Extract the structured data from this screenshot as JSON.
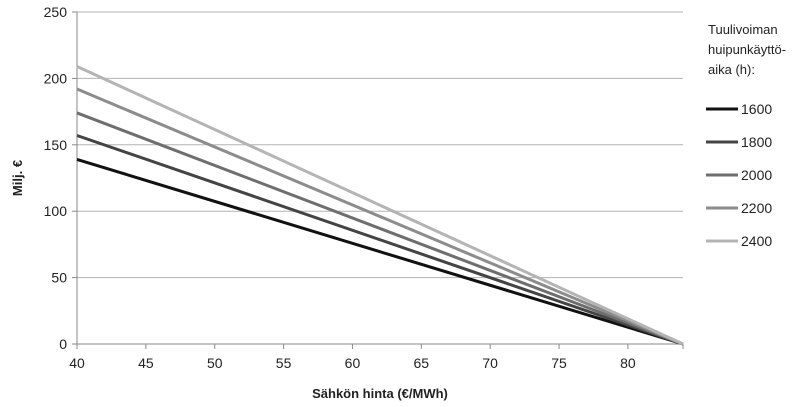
{
  "chart_data": {
    "type": "line",
    "title": "",
    "xlabel": "Sähkön hinta (€/MWh)",
    "ylabel": "Milj. €",
    "xlim": [
      40,
      84
    ],
    "ylim": [
      0,
      250
    ],
    "xticks": [
      40,
      45,
      50,
      55,
      60,
      65,
      70,
      75,
      80
    ],
    "yticks": [
      0,
      50,
      100,
      150,
      200,
      250
    ],
    "grid": "horizontal",
    "legend": {
      "title_lines": [
        "Tuulivoiman",
        "huipunkäyttö-",
        "aika (h):"
      ],
      "placement": "right"
    },
    "series": [
      {
        "name": "1600",
        "color": "#111111",
        "x": [
          40,
          84
        ],
        "y": [
          139,
          0
        ]
      },
      {
        "name": "1800",
        "color": "#444444",
        "x": [
          40,
          84
        ],
        "y": [
          157,
          0
        ]
      },
      {
        "name": "2000",
        "color": "#6e6e6e",
        "x": [
          40,
          84
        ],
        "y": [
          174,
          0
        ]
      },
      {
        "name": "2200",
        "color": "#8c8c8c",
        "x": [
          40,
          84
        ],
        "y": [
          192,
          0
        ]
      },
      {
        "name": "2400",
        "color": "#b4b4b4",
        "x": [
          40,
          84
        ],
        "y": [
          209,
          0
        ]
      }
    ]
  }
}
